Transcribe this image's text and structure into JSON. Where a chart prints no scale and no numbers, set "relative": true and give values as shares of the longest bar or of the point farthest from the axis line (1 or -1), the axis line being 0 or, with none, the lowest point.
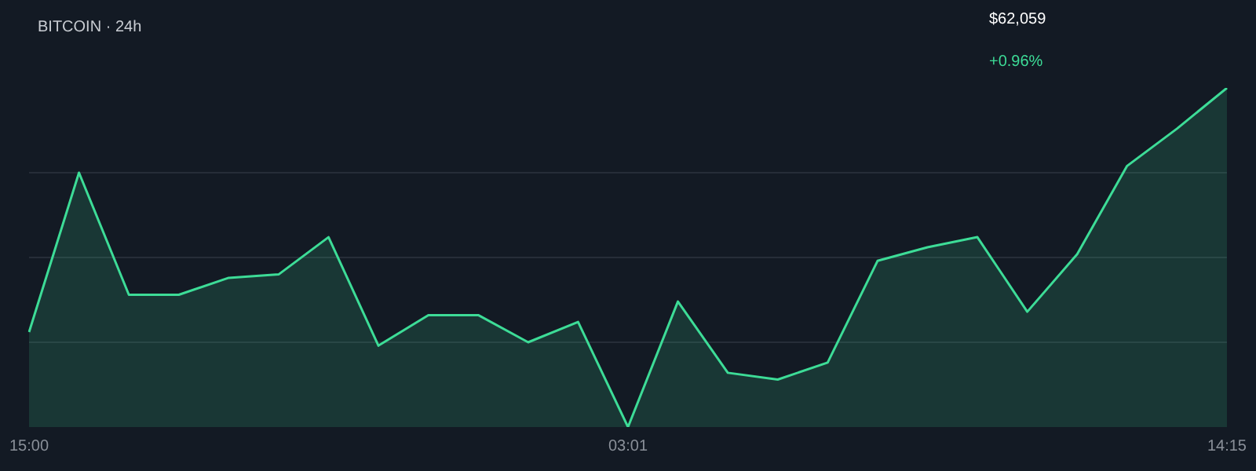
{
  "chart_data": {
    "type": "area",
    "title": "BITCOIN · 24h",
    "annotations": [
      "$62,059",
      "+0.96%"
    ],
    "relative": true,
    "grid": "y",
    "legend": false,
    "marker": "none",
    "categories": [
      "15:00",
      null,
      null,
      null,
      null,
      null,
      null,
      null,
      null,
      null,
      null,
      null,
      "03:01",
      null,
      null,
      null,
      null,
      null,
      null,
      null,
      null,
      null,
      null,
      null,
      "14:15"
    ],
    "series": [
      {
        "color": "#3ddc97",
        "values": [
          0.28,
          0.75,
          0.39,
          0.39,
          0.44,
          0.45,
          0.56,
          0.24,
          0.33,
          0.33,
          0.25,
          0.31,
          0,
          0.37,
          0.16,
          0.14,
          0.19,
          0.49,
          0.53,
          0.56,
          0.34,
          0.51,
          0.77,
          0.88,
          1
        ]
      }
    ]
  }
}
